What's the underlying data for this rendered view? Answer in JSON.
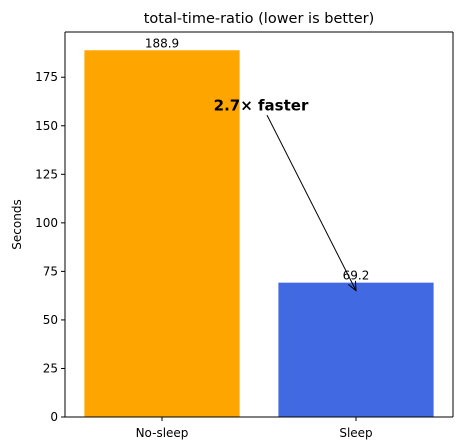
{
  "chart_data": {
    "type": "bar",
    "title": "total-time-ratio (lower is better)",
    "xlabel": "",
    "ylabel": "Seconds",
    "categories": [
      "No-sleep",
      "Sleep"
    ],
    "values": [
      188.9,
      69.2
    ],
    "data_labels": [
      "188.9",
      "69.2"
    ],
    "colors": [
      "#FFA500",
      "#4169E1"
    ],
    "ylim": [
      0,
      198.3
    ],
    "yticks": [
      0,
      25,
      50,
      75,
      100,
      125,
      150,
      175
    ],
    "ytick_labels": [
      "0",
      "25",
      "50",
      "75",
      "100",
      "125",
      "150",
      "175"
    ],
    "grid": false,
    "legend": "none",
    "annotation": {
      "text": "2.7× faster",
      "text_anchor": {
        "category": "No-sleep",
        "value": 160.5
      },
      "arrow_from": {
        "category": "No-sleep",
        "value": 155.5
      },
      "arrow_to": {
        "category": "Sleep",
        "value": 69.2
      }
    }
  }
}
